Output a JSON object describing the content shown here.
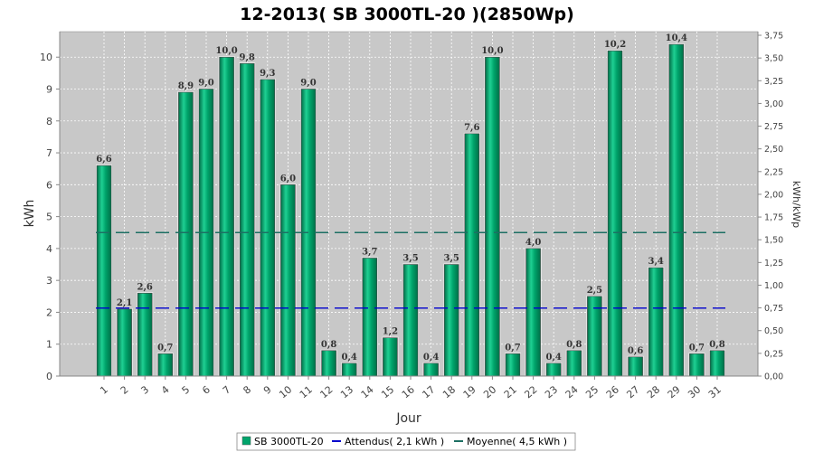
{
  "chart_data": {
    "type": "bar",
    "title": "12-2013( SB 3000TL-20 )(2850Wp)",
    "xlabel": "Jour",
    "ylabel": "kWh",
    "y2label": "kWh/kWp",
    "ylim": [
      0,
      10.8
    ],
    "y2lim": [
      0,
      3.79
    ],
    "yticks": [
      "0",
      "1",
      "2",
      "3",
      "4",
      "5",
      "6",
      "7",
      "8",
      "9",
      "10"
    ],
    "y2ticks": [
      "0,00",
      "0,25",
      "0,50",
      "0,75",
      "1,00",
      "1,25",
      "1,50",
      "1,75",
      "2,00",
      "2,25",
      "2,50",
      "2,75",
      "3,00",
      "3,25",
      "3,50",
      "3,75"
    ],
    "categories": [
      "1",
      "2",
      "3",
      "4",
      "5",
      "6",
      "7",
      "8",
      "9",
      "10",
      "11",
      "12",
      "13",
      "14",
      "15",
      "16",
      "17",
      "18",
      "19",
      "20",
      "21",
      "22",
      "23",
      "24",
      "25",
      "26",
      "27",
      "28",
      "29",
      "30",
      "31"
    ],
    "series": [
      {
        "name": "SB 3000TL-20",
        "color": "#00a46b",
        "values": [
          6.6,
          2.1,
          2.6,
          0.7,
          8.9,
          9.0,
          10.0,
          9.8,
          9.3,
          6.0,
          9.0,
          0.8,
          0.4,
          3.7,
          1.2,
          3.5,
          0.4,
          3.5,
          7.6,
          10.0,
          0.7,
          4.0,
          0.4,
          0.8,
          2.5,
          10.2,
          0.6,
          3.4,
          10.4,
          0.7,
          0.8
        ],
        "labels": [
          "6,6",
          "2,1",
          "2,6",
          "0,7",
          "8,9",
          "9,0",
          "10,0",
          "9,8",
          "9,3",
          "6,0",
          "9,0",
          "0,8",
          "0,4",
          "3,7",
          "1,2",
          "3,5",
          "0,4",
          "3,5",
          "7,6",
          "10,0",
          "0,7",
          "4,0",
          "0,4",
          "0,8",
          "2,5",
          "10,2",
          "0,6",
          "3,4",
          "10,4",
          "0,7",
          "0,8"
        ]
      }
    ],
    "reference_lines": [
      {
        "name": "Attendus( 2,1 kWh )",
        "value": 2.13,
        "color": "#0000cc",
        "style": "dashed"
      },
      {
        "name": "Moyenne( 4,5 kWh )",
        "value": 4.5,
        "color": "#1d6f63",
        "style": "dashed"
      }
    ],
    "grid": true,
    "legend_position": "bottom-center"
  }
}
